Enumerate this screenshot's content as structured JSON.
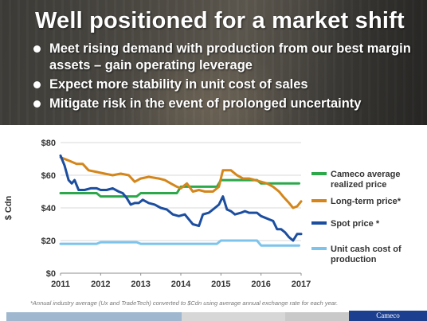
{
  "slide": {
    "title": "Well positioned for a market shift",
    "bullets": [
      "Meet rising demand with production from our best margin assets – gain operating leverage",
      "Expect more stability in unit cost of sales",
      "Mitigate risk in the event of prolonged uncertainty"
    ],
    "footnote": "*Annual industry average (Ux and TradeTech) converted to $Cdn using average annual exchange rate for each year.",
    "brand": "Cameco",
    "colors": {
      "brand_blue": "#1d3f8f",
      "accent_light_blue": "#9fb8cf"
    }
  },
  "chart_data": {
    "type": "line",
    "title": "",
    "xlabel": "",
    "ylabel": "$ Cdn",
    "xlim": [
      2011,
      2017
    ],
    "ylim": [
      0,
      80
    ],
    "x_ticks": [
      "2011",
      "2012",
      "2013",
      "2014",
      "2015",
      "2016",
      "2017"
    ],
    "y_ticks": [
      "$0",
      "$20",
      "$40",
      "$60",
      "$80"
    ],
    "grid": "horizontal",
    "legend_position": "right",
    "series": [
      {
        "name": "Cameco average realized price",
        "color": "#2ca84a",
        "legend_lines": [
          "Cameco average",
          "realized price"
        ],
        "points": [
          [
            2011.0,
            49
          ],
          [
            2011.9,
            49
          ],
          [
            2012.0,
            47
          ],
          [
            2012.9,
            47
          ],
          [
            2013.0,
            49
          ],
          [
            2013.9,
            49
          ],
          [
            2014.0,
            53
          ],
          [
            2014.9,
            53
          ],
          [
            2015.0,
            57
          ],
          [
            2015.9,
            57
          ],
          [
            2016.0,
            55
          ],
          [
            2016.95,
            55
          ]
        ]
      },
      {
        "name": "Long-term price*",
        "color": "#d4861b",
        "legend_lines": [
          "Long-term price*"
        ],
        "points": [
          [
            2011.0,
            71
          ],
          [
            2011.2,
            69
          ],
          [
            2011.4,
            67
          ],
          [
            2011.55,
            67
          ],
          [
            2011.7,
            63
          ],
          [
            2011.9,
            62
          ],
          [
            2012.1,
            61
          ],
          [
            2012.3,
            60
          ],
          [
            2012.5,
            61
          ],
          [
            2012.7,
            60
          ],
          [
            2012.85,
            56
          ],
          [
            2013.0,
            58
          ],
          [
            2013.2,
            59
          ],
          [
            2013.45,
            58
          ],
          [
            2013.6,
            57
          ],
          [
            2013.75,
            55
          ],
          [
            2013.9,
            53
          ],
          [
            2014.0,
            52
          ],
          [
            2014.15,
            55
          ],
          [
            2014.3,
            50
          ],
          [
            2014.45,
            51
          ],
          [
            2014.6,
            50
          ],
          [
            2014.8,
            50
          ],
          [
            2014.95,
            53
          ],
          [
            2015.05,
            63
          ],
          [
            2015.25,
            63
          ],
          [
            2015.4,
            60
          ],
          [
            2015.55,
            58
          ],
          [
            2015.7,
            58
          ],
          [
            2015.85,
            57
          ],
          [
            2016.0,
            56
          ],
          [
            2016.15,
            55
          ],
          [
            2016.3,
            53
          ],
          [
            2016.45,
            50
          ],
          [
            2016.55,
            47
          ],
          [
            2016.7,
            43
          ],
          [
            2016.8,
            40
          ],
          [
            2016.9,
            41
          ],
          [
            2017.0,
            44
          ]
        ]
      },
      {
        "name": "Spot price *",
        "color": "#1c4ea0",
        "legend_lines": [
          "Spot price *"
        ],
        "points": [
          [
            2011.0,
            72
          ],
          [
            2011.1,
            66
          ],
          [
            2011.2,
            57
          ],
          [
            2011.28,
            55
          ],
          [
            2011.35,
            57
          ],
          [
            2011.45,
            51
          ],
          [
            2011.6,
            51
          ],
          [
            2011.75,
            52
          ],
          [
            2011.9,
            52
          ],
          [
            2012.0,
            51
          ],
          [
            2012.15,
            51
          ],
          [
            2012.3,
            52
          ],
          [
            2012.45,
            50
          ],
          [
            2012.55,
            49
          ],
          [
            2012.65,
            46
          ],
          [
            2012.75,
            42
          ],
          [
            2012.85,
            43
          ],
          [
            2012.95,
            43
          ],
          [
            2013.05,
            45
          ],
          [
            2013.2,
            43
          ],
          [
            2013.35,
            42
          ],
          [
            2013.5,
            40
          ],
          [
            2013.65,
            39
          ],
          [
            2013.8,
            36
          ],
          [
            2013.95,
            35
          ],
          [
            2014.1,
            36
          ],
          [
            2014.2,
            33
          ],
          [
            2014.3,
            30
          ],
          [
            2014.45,
            29
          ],
          [
            2014.55,
            36
          ],
          [
            2014.7,
            37
          ],
          [
            2014.85,
            40
          ],
          [
            2014.95,
            42
          ],
          [
            2015.05,
            47
          ],
          [
            2015.15,
            39
          ],
          [
            2015.25,
            38
          ],
          [
            2015.35,
            36
          ],
          [
            2015.5,
            37
          ],
          [
            2015.6,
            38
          ],
          [
            2015.7,
            37
          ],
          [
            2015.8,
            37
          ],
          [
            2015.9,
            37
          ],
          [
            2016.0,
            35
          ],
          [
            2016.1,
            34
          ],
          [
            2016.2,
            33
          ],
          [
            2016.3,
            32
          ],
          [
            2016.4,
            27
          ],
          [
            2016.5,
            27
          ],
          [
            2016.6,
            25
          ],
          [
            2016.7,
            22
          ],
          [
            2016.8,
            20
          ],
          [
            2016.9,
            24
          ],
          [
            2017.0,
            24
          ]
        ]
      },
      {
        "name": "Unit cash cost of production",
        "color": "#7cc4ec",
        "legend_lines": [
          "Unit cash cost of",
          "production"
        ],
        "points": [
          [
            2011.0,
            18
          ],
          [
            2011.9,
            18
          ],
          [
            2012.0,
            19
          ],
          [
            2012.9,
            19
          ],
          [
            2013.0,
            18
          ],
          [
            2013.9,
            18
          ],
          [
            2014.0,
            18
          ],
          [
            2014.9,
            18
          ],
          [
            2015.0,
            20
          ],
          [
            2015.9,
            20
          ],
          [
            2016.0,
            17
          ],
          [
            2016.95,
            17
          ]
        ]
      }
    ]
  }
}
